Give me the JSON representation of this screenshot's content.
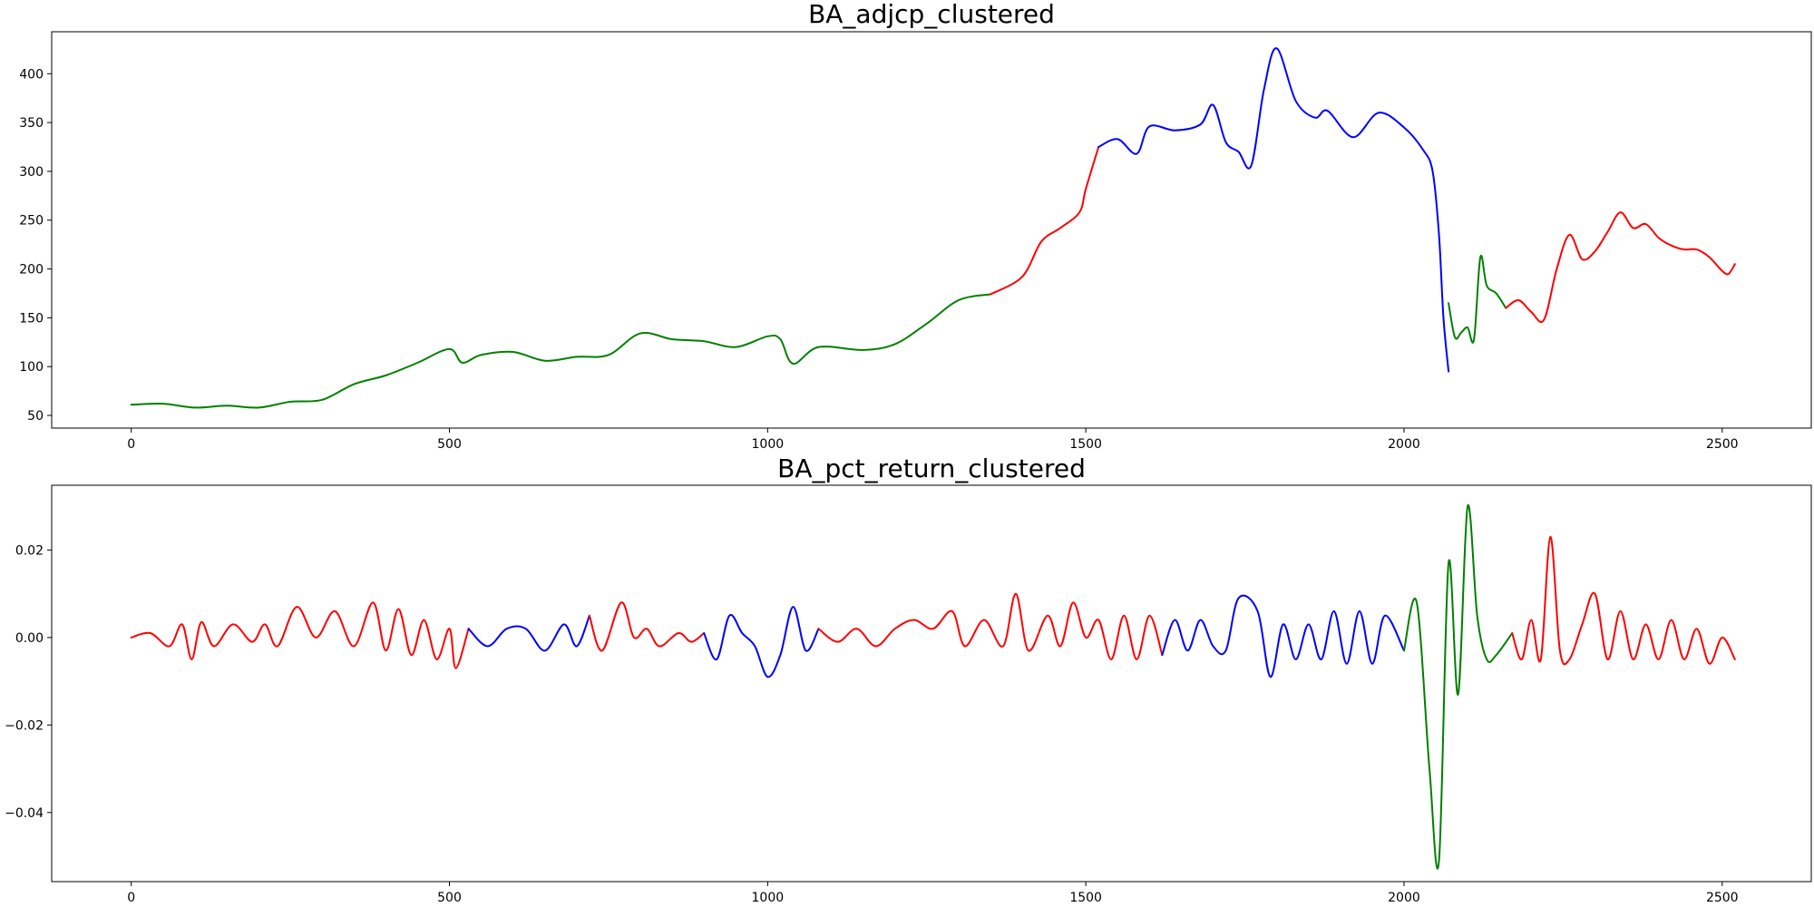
{
  "chart_data": [
    {
      "type": "line",
      "title": "BA_adjcp_clustered",
      "xlabel": "",
      "ylabel": "",
      "xlim": [
        -125,
        2640
      ],
      "ylim": [
        37,
        443
      ],
      "xticks": [
        0,
        500,
        1000,
        1500,
        2000,
        2500
      ],
      "xtick_labels": [
        "0",
        "500",
        "1000",
        "1500",
        "2000",
        "2500"
      ],
      "yticks": [
        50,
        100,
        150,
        200,
        250,
        300,
        350,
        400
      ],
      "ytick_labels": [
        "50",
        "100",
        "150",
        "200",
        "250",
        "300",
        "350",
        "400"
      ],
      "grid": false,
      "colors": {
        "red": "#ff0000",
        "blue": "#0000ff",
        "green": "#008000"
      },
      "segments": [
        {
          "color": "green",
          "x": [
            0,
            50,
            100,
            150,
            200,
            250,
            300,
            350,
            400,
            450,
            500,
            520,
            550,
            600,
            650,
            700,
            750,
            800,
            850,
            900,
            950,
            1000,
            1020,
            1040,
            1080,
            1150,
            1200,
            1250,
            1300,
            1350
          ],
          "y": [
            61,
            62,
            58,
            60,
            58,
            64,
            66,
            82,
            91,
            104,
            118,
            104,
            112,
            115,
            106,
            110,
            112,
            134,
            128,
            126,
            120,
            131,
            128,
            103,
            120,
            117,
            123,
            144,
            168,
            174
          ]
        },
        {
          "color": "red",
          "x": [
            1350,
            1400,
            1430,
            1460,
            1490,
            1500,
            1520
          ],
          "y": [
            174,
            192,
            228,
            242,
            258,
            282,
            325
          ]
        },
        {
          "color": "blue",
          "x": [
            1520,
            1550,
            1580,
            1600,
            1640,
            1680,
            1700,
            1720,
            1740,
            1760,
            1780,
            1800,
            1830,
            1860,
            1880,
            1920,
            1960,
            2000,
            2030,
            2045,
            2055,
            2062,
            2070
          ],
          "y": [
            325,
            333,
            318,
            346,
            342,
            348,
            368,
            330,
            320,
            306,
            384,
            426,
            372,
            355,
            362,
            335,
            360,
            345,
            322,
            300,
            235,
            150,
            95
          ]
        },
        {
          "color": "green",
          "x": [
            2070,
            2080,
            2090,
            2100,
            2110,
            2120,
            2130,
            2145,
            2160
          ],
          "y": [
            165,
            130,
            135,
            140,
            128,
            212,
            183,
            175,
            160
          ]
        },
        {
          "color": "red",
          "x": [
            2160,
            2180,
            2200,
            2220,
            2240,
            2260,
            2280,
            2300,
            2320,
            2340,
            2360,
            2380,
            2400,
            2420,
            2440,
            2460,
            2480,
            2500,
            2510,
            2520
          ],
          "y": [
            160,
            168,
            156,
            148,
            200,
            235,
            210,
            218,
            238,
            258,
            242,
            246,
            232,
            224,
            220,
            220,
            212,
            198,
            195,
            205
          ]
        }
      ]
    },
    {
      "type": "line",
      "title": "BA_pct_return_clustered",
      "xlabel": "",
      "ylabel": "",
      "xlim": [
        -125,
        2640
      ],
      "ylim": [
        -0.0558,
        0.0348
      ],
      "xticks": [
        0,
        500,
        1000,
        1500,
        2000,
        2500
      ],
      "xtick_labels": [
        "0",
        "500",
        "1000",
        "1500",
        "2000",
        "2500"
      ],
      "yticks": [
        -0.04,
        -0.02,
        0.0,
        0.02
      ],
      "ytick_labels": [
        "−0.04",
        "−0.02",
        "0.00",
        "0.02"
      ],
      "grid": false,
      "colors": {
        "red": "#ff0000",
        "blue": "#0000ff",
        "green": "#008000"
      },
      "segments": [
        {
          "color": "red",
          "x": [
            0,
            30,
            60,
            80,
            95,
            110,
            130,
            160,
            190,
            210,
            230,
            260,
            290,
            320,
            350,
            380,
            400,
            420,
            440,
            460,
            480,
            500,
            510,
            530
          ],
          "y": [
            0.0,
            0.001,
            -0.002,
            0.003,
            -0.005,
            0.0035,
            -0.002,
            0.003,
            -0.001,
            0.003,
            -0.002,
            0.007,
            0.0,
            0.006,
            -0.002,
            0.008,
            -0.003,
            0.0065,
            -0.004,
            0.004,
            -0.005,
            0.002,
            -0.007,
            0.002
          ]
        },
        {
          "color": "blue",
          "x": [
            530,
            560,
            590,
            620,
            650,
            680,
            700,
            720
          ],
          "y": [
            0.002,
            -0.002,
            0.002,
            0.002,
            -0.003,
            0.003,
            -0.002,
            0.005
          ]
        },
        {
          "color": "red",
          "x": [
            720,
            740,
            770,
            790,
            810,
            830,
            860,
            880,
            900
          ],
          "y": [
            0.005,
            -0.003,
            0.008,
            0.0,
            0.002,
            -0.002,
            0.001,
            -0.001,
            0.001
          ]
        },
        {
          "color": "blue",
          "x": [
            900,
            920,
            940,
            960,
            980,
            1000,
            1020,
            1040,
            1060,
            1080
          ],
          "y": [
            0.001,
            -0.005,
            0.005,
            0.001,
            -0.002,
            -0.009,
            -0.004,
            0.007,
            -0.003,
            0.002
          ]
        },
        {
          "color": "red",
          "x": [
            1080,
            1110,
            1140,
            1170,
            1200,
            1230,
            1260,
            1290,
            1310,
            1340,
            1370,
            1390,
            1410,
            1440,
            1460,
            1480,
            1500,
            1520,
            1540,
            1560,
            1580,
            1600,
            1620
          ],
          "y": [
            0.002,
            -0.001,
            0.002,
            -0.002,
            0.002,
            0.004,
            0.002,
            0.006,
            -0.002,
            0.004,
            -0.002,
            0.01,
            -0.003,
            0.005,
            -0.002,
            0.008,
            0.0,
            0.004,
            -0.005,
            0.005,
            -0.005,
            0.005,
            -0.004
          ]
        },
        {
          "color": "blue",
          "x": [
            1620,
            1640,
            1660,
            1680,
            1700,
            1720,
            1740,
            1770,
            1790,
            1810,
            1830,
            1850,
            1870,
            1890,
            1910,
            1930,
            1950,
            1970,
            2000
          ],
          "y": [
            -0.004,
            0.004,
            -0.003,
            0.004,
            -0.002,
            -0.003,
            0.009,
            0.006,
            -0.009,
            0.003,
            -0.005,
            0.003,
            -0.005,
            0.006,
            -0.006,
            0.006,
            -0.006,
            0.005,
            -0.003
          ]
        },
        {
          "color": "green",
          "x": [
            2000,
            2020,
            2040,
            2055,
            2070,
            2085,
            2100,
            2115,
            2130,
            2145,
            2170
          ],
          "y": [
            -0.003,
            0.008,
            -0.03,
            -0.051,
            0.017,
            -0.013,
            0.03,
            0.005,
            -0.005,
            -0.004,
            0.001
          ]
        },
        {
          "color": "red",
          "x": [
            2170,
            2185,
            2200,
            2215,
            2230,
            2245,
            2260,
            2280,
            2300,
            2320,
            2340,
            2360,
            2380,
            2400,
            2420,
            2440,
            2460,
            2480,
            2500,
            2520
          ],
          "y": [
            0.001,
            -0.005,
            0.004,
            -0.005,
            0.023,
            -0.003,
            -0.005,
            0.003,
            0.01,
            -0.005,
            0.006,
            -0.005,
            0.003,
            -0.005,
            0.004,
            -0.005,
            0.002,
            -0.006,
            0.0,
            -0.005
          ]
        }
      ]
    }
  ]
}
